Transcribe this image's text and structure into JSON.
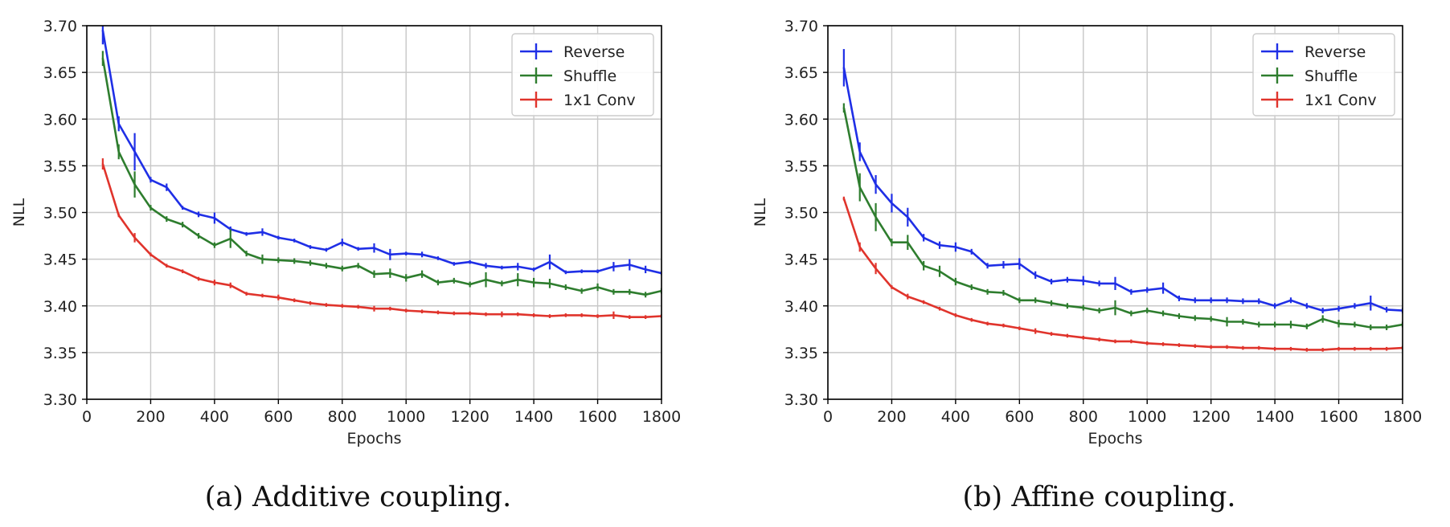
{
  "colors": {
    "reverse": "#1f2fe6",
    "shuffle": "#2e7d2e",
    "conv": "#e0342c",
    "grid": "#c8c8c8",
    "axis": "#000000"
  },
  "chart_data": [
    {
      "type": "line",
      "caption": "(a) Additive coupling.",
      "xlabel": "Epochs",
      "ylabel": "NLL",
      "xlim": [
        0,
        1800
      ],
      "ylim": [
        3.3,
        3.7
      ],
      "xticks": [
        "0",
        "200",
        "400",
        "600",
        "800",
        "1000",
        "1200",
        "1400",
        "1600",
        "1800"
      ],
      "yticks": [
        "3.30",
        "3.35",
        "3.40",
        "3.45",
        "3.50",
        "3.55",
        "3.60",
        "3.65",
        "3.70"
      ],
      "grid": true,
      "legend": "top-right",
      "x": [
        50,
        100,
        150,
        200,
        250,
        300,
        350,
        400,
        450,
        500,
        550,
        600,
        650,
        700,
        750,
        800,
        850,
        900,
        950,
        1000,
        1050,
        1100,
        1150,
        1200,
        1250,
        1300,
        1350,
        1400,
        1450,
        1500,
        1550,
        1600,
        1650,
        1700,
        1750,
        1800
      ],
      "series": [
        {
          "name": "Reverse",
          "color": "reverse",
          "values": [
            3.695,
            3.595,
            3.565,
            3.535,
            3.527,
            3.505,
            3.498,
            3.494,
            3.482,
            3.477,
            3.479,
            3.473,
            3.47,
            3.463,
            3.46,
            3.468,
            3.461,
            3.462,
            3.455,
            3.456,
            3.455,
            3.451,
            3.445,
            3.447,
            3.443,
            3.441,
            3.442,
            3.439,
            3.447,
            3.436,
            3.437,
            3.437,
            3.442,
            3.444,
            3.439,
            3.435
          ],
          "errors": [
            0.015,
            0.008,
            0.02,
            0.003,
            0.004,
            0.002,
            0.003,
            0.006,
            0.003,
            0.002,
            0.004,
            0.002,
            0.002,
            0.002,
            0.002,
            0.004,
            0.002,
            0.005,
            0.006,
            0.002,
            0.003,
            0.002,
            0.002,
            0.002,
            0.003,
            0.002,
            0.004,
            0.002,
            0.008,
            0.002,
            0.002,
            0.002,
            0.005,
            0.006,
            0.004,
            0.002
          ]
        },
        {
          "name": "Shuffle",
          "color": "shuffle",
          "values": [
            3.665,
            3.565,
            3.53,
            3.505,
            3.493,
            3.487,
            3.475,
            3.465,
            3.472,
            3.456,
            3.45,
            3.449,
            3.448,
            3.446,
            3.443,
            3.44,
            3.443,
            3.434,
            3.435,
            3.43,
            3.434,
            3.425,
            3.427,
            3.423,
            3.428,
            3.424,
            3.428,
            3.425,
            3.424,
            3.42,
            3.416,
            3.42,
            3.415,
            3.415,
            3.412,
            3.416
          ],
          "errors": [
            0.008,
            0.008,
            0.014,
            0.003,
            0.003,
            0.003,
            0.003,
            0.003,
            0.01,
            0.003,
            0.005,
            0.003,
            0.003,
            0.003,
            0.003,
            0.003,
            0.003,
            0.004,
            0.005,
            0.004,
            0.004,
            0.003,
            0.003,
            0.003,
            0.008,
            0.003,
            0.007,
            0.005,
            0.005,
            0.003,
            0.003,
            0.004,
            0.003,
            0.003,
            0.003,
            0.003
          ]
        },
        {
          "name": "1x1 Conv",
          "color": "conv",
          "values": [
            3.552,
            3.497,
            3.473,
            3.455,
            3.443,
            3.437,
            3.429,
            3.425,
            3.422,
            3.413,
            3.411,
            3.409,
            3.406,
            3.403,
            3.401,
            3.4,
            3.399,
            3.397,
            3.397,
            3.395,
            3.394,
            3.393,
            3.392,
            3.392,
            3.391,
            3.391,
            3.391,
            3.39,
            3.389,
            3.39,
            3.39,
            3.389,
            3.39,
            3.388,
            3.388,
            3.389
          ],
          "errors": [
            0.006,
            0.002,
            0.005,
            0.002,
            0.002,
            0.002,
            0.002,
            0.003,
            0.003,
            0.002,
            0.002,
            0.003,
            0.002,
            0.002,
            0.002,
            0.002,
            0.002,
            0.003,
            0.002,
            0.002,
            0.002,
            0.002,
            0.002,
            0.002,
            0.002,
            0.003,
            0.002,
            0.002,
            0.002,
            0.002,
            0.002,
            0.002,
            0.004,
            0.002,
            0.002,
            0.002
          ]
        }
      ]
    },
    {
      "type": "line",
      "caption": "(b) Affine coupling.",
      "xlabel": "Epochs",
      "ylabel": "NLL",
      "xlim": [
        0,
        1800
      ],
      "ylim": [
        3.3,
        3.7
      ],
      "xticks": [
        "0",
        "200",
        "400",
        "600",
        "800",
        "1000",
        "1200",
        "1400",
        "1600",
        "1800"
      ],
      "yticks": [
        "3.30",
        "3.35",
        "3.40",
        "3.45",
        "3.50",
        "3.55",
        "3.60",
        "3.65",
        "3.70"
      ],
      "grid": true,
      "legend": "top-right",
      "x": [
        50,
        100,
        150,
        200,
        250,
        300,
        350,
        400,
        450,
        500,
        550,
        600,
        650,
        700,
        750,
        800,
        850,
        900,
        950,
        1000,
        1050,
        1100,
        1150,
        1200,
        1250,
        1300,
        1350,
        1400,
        1450,
        1500,
        1550,
        1600,
        1650,
        1700,
        1750,
        1800
      ],
      "series": [
        {
          "name": "Reverse",
          "color": "reverse",
          "values": [
            3.655,
            3.565,
            3.53,
            3.51,
            3.495,
            3.473,
            3.465,
            3.463,
            3.458,
            3.443,
            3.444,
            3.445,
            3.433,
            3.426,
            3.428,
            3.427,
            3.424,
            3.424,
            3.415,
            3.417,
            3.419,
            3.408,
            3.406,
            3.406,
            3.406,
            3.405,
            3.405,
            3.4,
            3.406,
            3.4,
            3.395,
            3.397,
            3.4,
            3.403,
            3.396,
            3.395
          ],
          "errors": [
            0.02,
            0.01,
            0.01,
            0.01,
            0.01,
            0.004,
            0.004,
            0.005,
            0.003,
            0.003,
            0.004,
            0.006,
            0.004,
            0.003,
            0.003,
            0.005,
            0.003,
            0.007,
            0.003,
            0.003,
            0.006,
            0.003,
            0.003,
            0.003,
            0.003,
            0.003,
            0.003,
            0.003,
            0.003,
            0.003,
            0.003,
            0.003,
            0.003,
            0.008,
            0.003,
            0.003
          ]
        },
        {
          "name": "Shuffle",
          "color": "shuffle",
          "values": [
            3.612,
            3.527,
            3.495,
            3.468,
            3.468,
            3.443,
            3.437,
            3.426,
            3.42,
            3.415,
            3.414,
            3.406,
            3.406,
            3.403,
            3.4,
            3.398,
            3.395,
            3.398,
            3.392,
            3.395,
            3.392,
            3.389,
            3.387,
            3.386,
            3.383,
            3.383,
            3.38,
            3.38,
            3.38,
            3.378,
            3.386,
            3.381,
            3.38,
            3.377,
            3.377,
            3.38
          ],
          "errors": [
            0.005,
            0.015,
            0.015,
            0.004,
            0.008,
            0.005,
            0.006,
            0.004,
            0.003,
            0.003,
            0.003,
            0.003,
            0.003,
            0.003,
            0.003,
            0.003,
            0.003,
            0.008,
            0.003,
            0.003,
            0.003,
            0.003,
            0.003,
            0.003,
            0.005,
            0.003,
            0.003,
            0.003,
            0.004,
            0.003,
            0.004,
            0.004,
            0.003,
            0.003,
            0.003,
            0.003
          ]
        },
        {
          "name": "1x1 Conv",
          "color": "conv",
          "values": [
            3.515,
            3.463,
            3.44,
            3.42,
            3.41,
            3.404,
            3.397,
            3.39,
            3.385,
            3.381,
            3.379,
            3.376,
            3.373,
            3.37,
            3.368,
            3.366,
            3.364,
            3.362,
            3.362,
            3.36,
            3.359,
            3.358,
            3.357,
            3.356,
            3.356,
            3.355,
            3.355,
            3.354,
            3.354,
            3.353,
            3.353,
            3.354,
            3.354,
            3.354,
            3.354,
            3.355
          ],
          "errors": [
            0.002,
            0.005,
            0.006,
            0.002,
            0.003,
            0.002,
            0.002,
            0.002,
            0.002,
            0.002,
            0.002,
            0.002,
            0.003,
            0.002,
            0.002,
            0.002,
            0.002,
            0.002,
            0.002,
            0.002,
            0.002,
            0.002,
            0.002,
            0.002,
            0.002,
            0.002,
            0.002,
            0.002,
            0.002,
            0.002,
            0.002,
            0.002,
            0.002,
            0.002,
            0.002,
            0.002
          ]
        }
      ]
    }
  ]
}
